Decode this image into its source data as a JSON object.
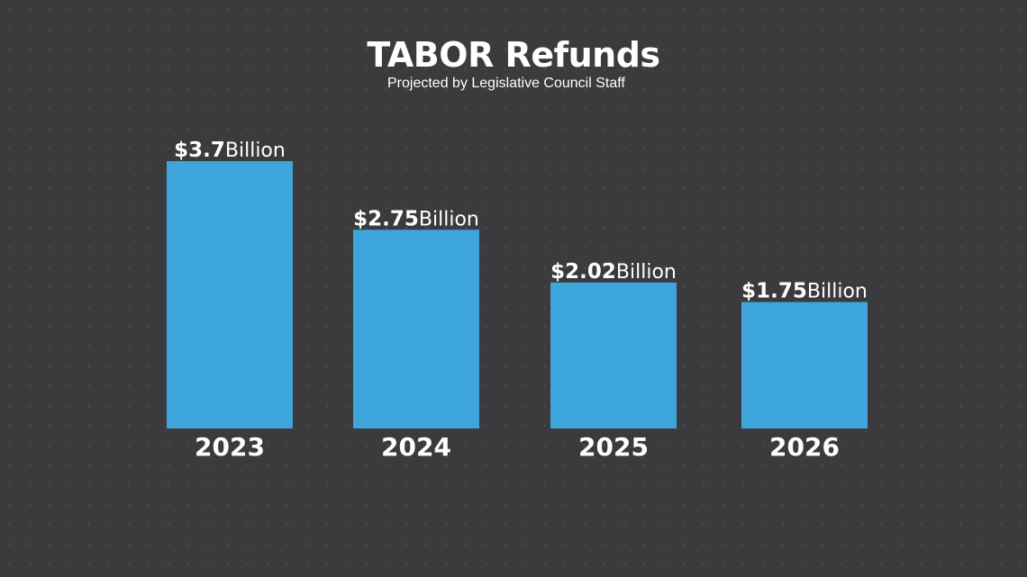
{
  "chart_data": {
    "type": "bar",
    "title": "TABOR Refunds",
    "subtitle": "Projected by Legislative Council Staff",
    "categories": [
      "2023",
      "2024",
      "2025",
      "2026"
    ],
    "values": [
      3.7,
      2.75,
      2.02,
      1.75
    ],
    "value_labels": [
      {
        "amount": "$3.7",
        "unit": "Billion"
      },
      {
        "amount": "$2.75",
        "unit": "Billion"
      },
      {
        "amount": "$2.02",
        "unit": "Billion"
      },
      {
        "amount": "$1.75",
        "unit": "Billion"
      }
    ],
    "xlabel": "",
    "ylabel": "",
    "ylim": [
      0,
      3.7
    ],
    "grid": false,
    "bar_color": "#3da6dc",
    "text_color": "#ffffff",
    "background_color": "#3b3b3d"
  }
}
